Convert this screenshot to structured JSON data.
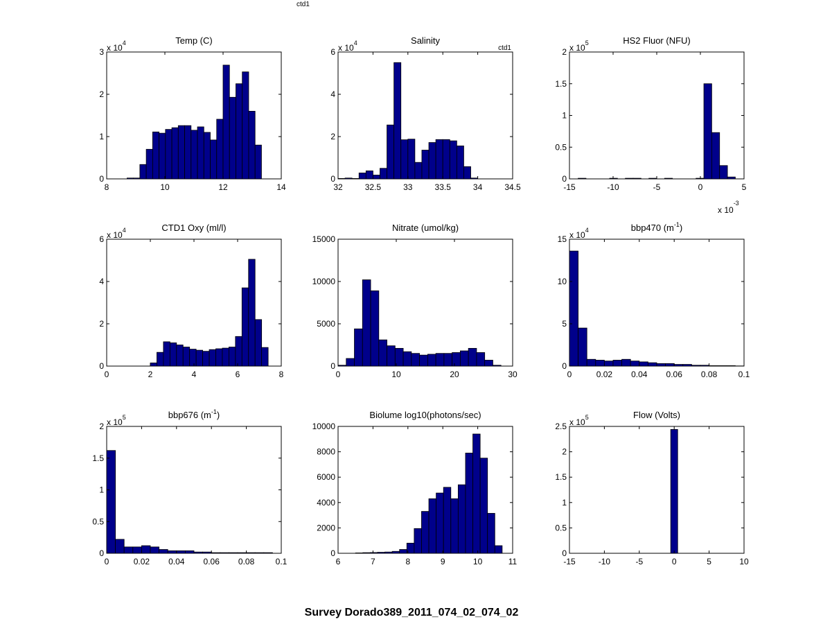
{
  "figure": {
    "suptitle": "Survey Dorado389_2011_074_02_074_02",
    "top_note": "ctd1",
    "bar_color": "#00008B"
  },
  "chart_data": [
    {
      "type": "bar",
      "title": "Temp (C)",
      "x_ticks": [
        8,
        10,
        12,
        14
      ],
      "y_ticks": [
        "0",
        "1",
        "2",
        "3"
      ],
      "xlim": [
        8,
        14
      ],
      "ylim": [
        0,
        3
      ],
      "y_exponent_base": "x 10",
      "y_exponent_power": "4",
      "x_exponent_base": "",
      "x_exponent_power": "",
      "corner_note": "",
      "bin_edges": [
        8.7,
        8.92,
        9.14,
        9.36,
        9.58,
        9.8,
        10.02,
        10.24,
        10.46,
        10.68,
        10.9,
        11.12,
        11.34,
        11.56,
        11.78,
        12.0,
        12.22,
        12.44,
        12.66,
        12.88,
        13.1,
        13.32,
        13.54,
        13.76,
        13.98
      ],
      "values": [
        0.02,
        0.02,
        0.34,
        0.7,
        1.11,
        1.08,
        1.17,
        1.21,
        1.26,
        1.26,
        1.15,
        1.23,
        1.1,
        0.92,
        1.41,
        2.69,
        1.93,
        2.25,
        2.53,
        1.6,
        0.8,
        0,
        0,
        0
      ]
    },
    {
      "type": "bar",
      "title": "Salinity",
      "x_ticks": [
        32,
        32.5,
        33,
        33.5,
        34,
        34.5
      ],
      "y_ticks": [
        "0",
        "2",
        "4",
        "6"
      ],
      "xlim": [
        32,
        34.5
      ],
      "ylim": [
        0,
        6
      ],
      "y_exponent_base": "x 10",
      "y_exponent_power": "4",
      "x_exponent_base": "",
      "x_exponent_power": "",
      "corner_note": "ctd1",
      "bin_edges": [
        32.0,
        32.1,
        32.2,
        32.3,
        32.4,
        32.5,
        32.6,
        32.7,
        32.8,
        32.9,
        33.0,
        33.1,
        33.2,
        33.3,
        33.4,
        33.5,
        33.6,
        33.7,
        33.8,
        33.9,
        34.0
      ],
      "values": [
        0.02,
        0.04,
        0.02,
        0.28,
        0.38,
        0.18,
        0.5,
        2.55,
        5.5,
        1.85,
        1.88,
        0.78,
        1.36,
        1.72,
        1.86,
        1.86,
        1.8,
        1.56,
        0.58,
        0.04
      ]
    },
    {
      "type": "bar",
      "title": "HS2 Fluor (NFU)",
      "x_ticks": [
        -15,
        -10,
        -5,
        0,
        5
      ],
      "y_ticks": [
        "0",
        "0.5",
        "1",
        "1.5",
        "2"
      ],
      "xlim": [
        -15,
        5
      ],
      "ylim": [
        0,
        2
      ],
      "y_exponent_base": "x 10",
      "y_exponent_power": "5",
      "x_exponent_base": "x 10",
      "x_exponent_power": "-3",
      "corner_note": "",
      "bin_edges": [
        -14.0,
        -13.1,
        -12.2,
        -11.3,
        -10.4,
        -9.5,
        -8.6,
        -7.7,
        -6.8,
        -5.9,
        -5.0,
        -4.1,
        -3.2,
        -2.3,
        -1.4,
        -0.5,
        0.4,
        1.3,
        2.2,
        3.1,
        4.0
      ],
      "values": [
        0.01,
        0,
        0,
        0,
        0.01,
        0,
        0.01,
        0.01,
        0,
        0.01,
        0,
        0.01,
        0,
        0,
        0,
        0.01,
        1.5,
        0.73,
        0.21,
        0.03
      ]
    },
    {
      "type": "bar",
      "title": "CTD1 Oxy (ml/l)",
      "x_ticks": [
        0,
        2,
        4,
        6,
        8
      ],
      "y_ticks": [
        "0",
        "2",
        "4",
        "6"
      ],
      "xlim": [
        0,
        8
      ],
      "ylim": [
        0,
        6
      ],
      "y_exponent_base": "x 10",
      "y_exponent_power": "4",
      "x_exponent_base": "",
      "x_exponent_power": "",
      "corner_note": "",
      "bin_edges": [
        2.0,
        2.3,
        2.6,
        2.9,
        3.2,
        3.5,
        3.8,
        4.1,
        4.4,
        4.7,
        5.0,
        5.3,
        5.6,
        5.9,
        6.2,
        6.5,
        6.8,
        7.1,
        7.4
      ],
      "values": [
        0.15,
        0.65,
        1.15,
        1.1,
        1.0,
        0.9,
        0.8,
        0.75,
        0.7,
        0.78,
        0.82,
        0.85,
        0.9,
        1.4,
        3.7,
        5.05,
        2.2,
        0.88,
        0.1
      ]
    },
    {
      "type": "bar",
      "title": "Nitrate (umol/kg)",
      "x_ticks": [
        0,
        10,
        20,
        30
      ],
      "y_ticks": [
        "0",
        "5000",
        "10000",
        "15000"
      ],
      "xlim": [
        0,
        30
      ],
      "ylim": [
        0,
        15000
      ],
      "y_exponent_base": "",
      "y_exponent_power": "",
      "x_exponent_base": "",
      "x_exponent_power": "",
      "corner_note": "",
      "bin_edges": [
        0.0,
        1.4,
        2.8,
        4.2,
        5.6,
        7.0,
        8.4,
        9.8,
        11.2,
        12.6,
        14.0,
        15.4,
        16.8,
        18.2,
        19.6,
        21.0,
        22.4,
        23.8,
        25.2,
        26.6,
        28.0
      ],
      "values": [
        100,
        900,
        4400,
        10200,
        8900,
        3100,
        2400,
        2100,
        1700,
        1500,
        1300,
        1400,
        1500,
        1500,
        1600,
        1800,
        2100,
        1600,
        700,
        100
      ]
    },
    {
      "type": "bar",
      "title": "bbp470 (m",
      "title_sup": "-1",
      "title_end": ")",
      "x_ticks": [
        0,
        0.02,
        0.04,
        0.06,
        0.08,
        0.1
      ],
      "y_ticks": [
        "0",
        "5",
        "10",
        "15"
      ],
      "xlim": [
        0,
        0.1
      ],
      "ylim": [
        0,
        15
      ],
      "y_exponent_base": "x 10",
      "y_exponent_power": "4",
      "x_exponent_base": "",
      "x_exponent_power": "",
      "corner_note": "",
      "bin_edges": [
        0.0,
        0.005,
        0.01,
        0.015,
        0.02,
        0.025,
        0.03,
        0.035,
        0.04,
        0.045,
        0.05,
        0.055,
        0.06,
        0.065,
        0.07,
        0.075,
        0.08,
        0.085,
        0.09,
        0.095,
        0.1
      ],
      "values": [
        13.6,
        4.5,
        0.8,
        0.7,
        0.6,
        0.7,
        0.8,
        0.6,
        0.5,
        0.4,
        0.3,
        0.3,
        0.2,
        0.2,
        0.1,
        0.1,
        0.05,
        0.05,
        0.05,
        0.02
      ]
    },
    {
      "type": "bar",
      "title": "bbp676 (m",
      "title_sup": "-1",
      "title_end": ")",
      "x_ticks": [
        0,
        0.02,
        0.04,
        0.06,
        0.08,
        0.1
      ],
      "y_ticks": [
        "0",
        "0.5",
        "1",
        "1.5",
        "2"
      ],
      "xlim": [
        0,
        0.1
      ],
      "ylim": [
        0,
        2
      ],
      "y_exponent_base": "x 10",
      "y_exponent_power": "5",
      "x_exponent_base": "",
      "x_exponent_power": "",
      "corner_note": "",
      "bin_edges": [
        0.0,
        0.005,
        0.01,
        0.015,
        0.02,
        0.025,
        0.03,
        0.035,
        0.04,
        0.045,
        0.05,
        0.055,
        0.06,
        0.065,
        0.07,
        0.075,
        0.08,
        0.085,
        0.09,
        0.095
      ],
      "values": [
        1.62,
        0.22,
        0.1,
        0.1,
        0.12,
        0.1,
        0.06,
        0.04,
        0.04,
        0.04,
        0.02,
        0.02,
        0.01,
        0.01,
        0.01,
        0.01,
        0.01,
        0.01,
        0.01
      ]
    },
    {
      "type": "bar",
      "title": "Biolume log10(photons/sec)",
      "x_ticks": [
        6,
        7,
        8,
        9,
        10,
        11
      ],
      "y_ticks": [
        "0",
        "2000",
        "4000",
        "6000",
        "8000",
        "10000"
      ],
      "xlim": [
        6,
        11
      ],
      "ylim": [
        0,
        10000
      ],
      "y_exponent_base": "",
      "y_exponent_power": "",
      "x_exponent_base": "",
      "x_exponent_power": "",
      "corner_note": "",
      "bin_edges": [
        6.5,
        6.71,
        6.92,
        7.13,
        7.34,
        7.55,
        7.76,
        7.97,
        8.18,
        8.39,
        8.6,
        8.81,
        9.02,
        9.23,
        9.44,
        9.65,
        9.86,
        10.07,
        10.28,
        10.49,
        10.7
      ],
      "values": [
        30,
        50,
        60,
        80,
        100,
        150,
        300,
        800,
        1950,
        3300,
        4300,
        4750,
        5200,
        4300,
        5400,
        7900,
        9400,
        7500,
        3150,
        600
      ]
    },
    {
      "type": "bar",
      "title": "Flow (Volts)",
      "x_ticks": [
        -15,
        -10,
        -5,
        0,
        5,
        10
      ],
      "y_ticks": [
        "0",
        "0.5",
        "1",
        "1.5",
        "2",
        "2.5"
      ],
      "xlim": [
        -15,
        10
      ],
      "ylim": [
        0,
        2.5
      ],
      "y_exponent_base": "x 10",
      "y_exponent_power": "5",
      "x_exponent_base": "",
      "x_exponent_power": "",
      "corner_note": "",
      "bin_edges": [
        -0.5,
        0.5
      ],
      "values": [
        2.44
      ]
    }
  ]
}
